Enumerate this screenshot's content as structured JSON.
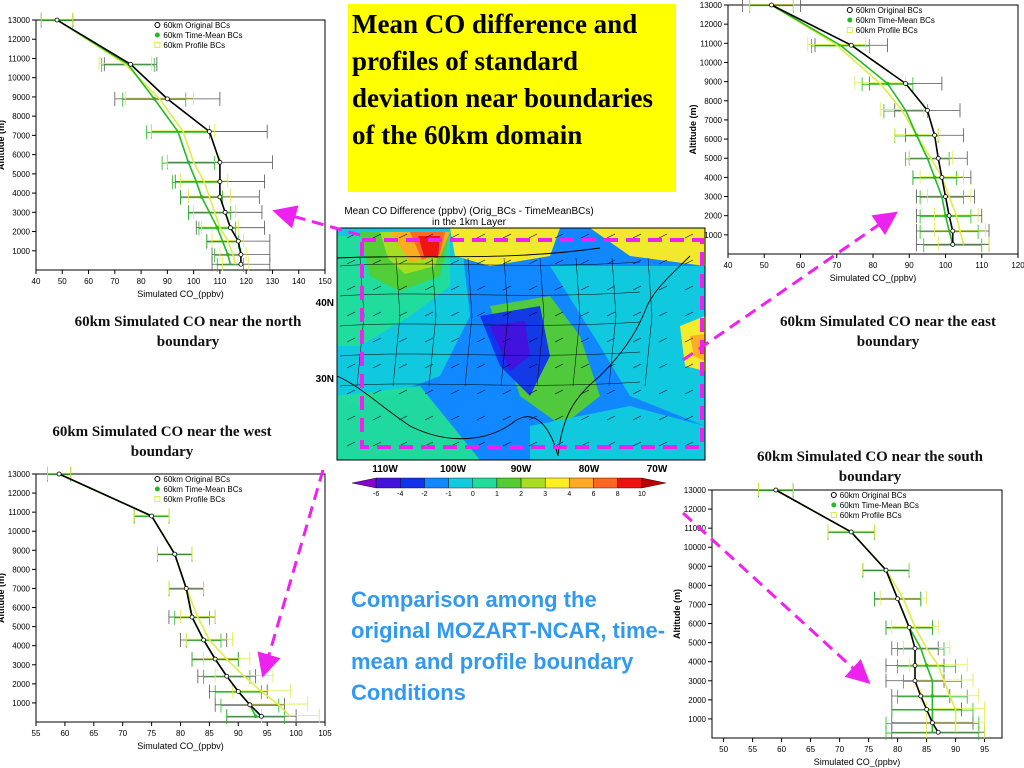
{
  "slide": {
    "title": "Mean CO difference and profiles of standard deviation near boundaries of the 60km domain",
    "comparison_note": "Comparison among the original MOZART-NCAR, time-mean and profile boundary Conditions"
  },
  "colors": {
    "title_bg": "#ffff00",
    "note_text": "#3399ee",
    "arrow": "#ee22ee",
    "original": "#000000",
    "time_mean": "#22bb22",
    "profile": "#ddee44"
  },
  "map": {
    "title_line1": "Mean CO Difference (ppbv) (Orig_BCs - TimeMeanBCs)",
    "title_line2": "in the 1km Layer",
    "lat_labels": [
      "40N",
      "30N"
    ],
    "lon_labels": [
      "110W",
      "100W",
      "90W",
      "80W",
      "70W"
    ],
    "colorbar": {
      "labels": [
        "-6",
        "-4",
        "-2",
        "-1",
        "0",
        "1",
        "2",
        "3",
        "4",
        "6",
        "8",
        "10"
      ],
      "colors": [
        "#8800cc",
        "#4411dd",
        "#1133ee",
        "#1188ff",
        "#11ccdd",
        "#22dd99",
        "#55cc33",
        "#aadd22",
        "#ffee22",
        "#ffaa22",
        "#ff6622",
        "#ee1111",
        "#bb0000"
      ]
    }
  },
  "chart_data": [
    {
      "type": "line",
      "caption": "60km Simulated CO near the north boundary",
      "xlabel": "Simulated CO_(ppbv)",
      "ylabel": "Altitude (m)",
      "xlim": [
        40,
        150
      ],
      "ylim": [
        0,
        13000
      ],
      "xticks": [
        40,
        50,
        60,
        70,
        80,
        90,
        100,
        110,
        120,
        130,
        140,
        150
      ],
      "yticks": [
        1000,
        2000,
        3000,
        4000,
        5000,
        6000,
        7000,
        8000,
        9000,
        10000,
        11000,
        12000,
        13000
      ],
      "legend": [
        "60km Original BCs",
        "60km Time-Mean BCs",
        "60km Profile BCs"
      ],
      "altitude": [
        13000,
        10700,
        8900,
        7200,
        5600,
        4600,
        3800,
        3000,
        2200,
        1500,
        800,
        300
      ],
      "series": [
        {
          "name": "60km Original BCs",
          "values": [
            48,
            76,
            90,
            106,
            110,
            110,
            110,
            112,
            114,
            117,
            118,
            118
          ],
          "spread": [
            6,
            10,
            20,
            22,
            20,
            17,
            15,
            14,
            13,
            12,
            11,
            11
          ]
        },
        {
          "name": "60km Time-Mean BCs",
          "values": [
            48,
            75,
            85,
            94,
            98,
            101,
            103,
            106,
            109,
            111,
            113,
            114
          ],
          "spread": [
            6,
            10,
            12,
            12,
            10,
            9,
            8,
            8,
            7,
            6,
            5,
            5
          ]
        },
        {
          "name": "60km Profile BCs",
          "values": [
            48,
            74,
            87,
            96,
            100,
            104,
            106,
            108,
            110,
            113,
            115,
            116
          ],
          "spread": [
            6,
            10,
            13,
            12,
            10,
            9,
            8,
            8,
            7,
            6,
            5,
            5
          ]
        }
      ]
    },
    {
      "type": "line",
      "caption": "60km Simulated CO near the east boundary",
      "xlabel": "Simulated CO_(ppbv)",
      "ylabel": "Altitude (m)",
      "xlim": [
        40,
        120
      ],
      "ylim": [
        0,
        13000
      ],
      "xticks": [
        40,
        50,
        60,
        70,
        80,
        90,
        100,
        110,
        120
      ],
      "yticks": [
        1000,
        2000,
        3000,
        4000,
        5000,
        6000,
        7000,
        8000,
        9000,
        10000,
        11000,
        12000,
        13000
      ],
      "legend": [
        "60km Original BCs",
        "60km Time-Mean BCs",
        "60km Profile BCs"
      ],
      "altitude": [
        13000,
        10900,
        8900,
        7500,
        6200,
        5000,
        4000,
        3000,
        2000,
        1200,
        500
      ],
      "series": [
        {
          "name": "60km Original BCs",
          "values": [
            52,
            74,
            89,
            95,
            97,
            98,
            99,
            100,
            101,
            102,
            102
          ],
          "spread": [
            8,
            10,
            10,
            9,
            8,
            8,
            8,
            8,
            9,
            10,
            10
          ]
        },
        {
          "name": "60km Time-Mean BCs",
          "values": [
            52,
            71,
            84,
            89,
            92,
            95,
            97,
            99,
            100,
            101,
            102
          ],
          "spread": [
            6,
            8,
            7,
            6,
            6,
            6,
            6,
            6,
            7,
            8,
            8
          ]
        },
        {
          "name": "60km Profile BCs",
          "values": [
            52,
            70,
            82,
            88,
            92,
            96,
            99,
            101,
            103,
            104,
            105
          ],
          "spread": [
            6,
            8,
            7,
            6,
            6,
            6,
            6,
            6,
            6,
            7,
            7
          ]
        }
      ]
    },
    {
      "type": "line",
      "caption": "60km Simulated CO near the west boundary",
      "xlabel": "Simulated CO_(ppbv)",
      "ylabel": "Altitude (m)",
      "xlim": [
        55,
        105
      ],
      "ylim": [
        0,
        13000
      ],
      "xticks": [
        55,
        60,
        65,
        70,
        75,
        80,
        85,
        90,
        95,
        100,
        105
      ],
      "yticks": [
        1000,
        2000,
        3000,
        4000,
        5000,
        6000,
        7000,
        8000,
        9000,
        10000,
        11000,
        12000,
        13000
      ],
      "legend": [
        "60km Original BCs",
        "60km Time-Mean BCs",
        "60km Profile BCs"
      ],
      "altitude": [
        13000,
        10800,
        8800,
        7000,
        5500,
        4300,
        3300,
        2400,
        1600,
        900,
        300
      ],
      "series": [
        {
          "name": "60km Original BCs",
          "values": [
            59,
            75,
            79,
            81,
            82,
            84,
            86,
            88,
            90,
            92,
            94
          ],
          "spread": [
            2,
            3,
            3,
            3,
            4,
            4,
            4,
            5,
            5,
            6,
            6
          ]
        },
        {
          "name": "60km Time-Mean BCs",
          "values": [
            59,
            75,
            79,
            81,
            82,
            84,
            86,
            88,
            90,
            92,
            93
          ],
          "spread": [
            2,
            3,
            3,
            3,
            3,
            3,
            4,
            4,
            4,
            5,
            5
          ]
        },
        {
          "name": "60km Profile BCs",
          "values": [
            59,
            75,
            79,
            81,
            83,
            85,
            88,
            91,
            94,
            97,
            99
          ],
          "spread": [
            2,
            3,
            3,
            3,
            3,
            4,
            4,
            5,
            5,
            5,
            5
          ]
        }
      ]
    },
    {
      "type": "line",
      "caption": "60km Simulated CO near the south boundary",
      "xlabel": "Simulated CO_(ppbv)",
      "ylabel": "Altitude (m)",
      "xlim": [
        48,
        98
      ],
      "ylim": [
        0,
        13000
      ],
      "xticks": [
        50,
        55,
        60,
        65,
        70,
        75,
        80,
        85,
        90,
        95
      ],
      "yticks": [
        1000,
        2000,
        3000,
        4000,
        5000,
        6000,
        7000,
        8000,
        9000,
        10000,
        11000,
        12000,
        13000
      ],
      "legend": [
        "60km Original BCs",
        "60km Time-Mean BCs",
        "60km Profile BCs"
      ],
      "altitude": [
        13000,
        10800,
        8800,
        7300,
        5800,
        4700,
        3800,
        3000,
        2200,
        1500,
        800,
        300
      ],
      "series": [
        {
          "name": "60km Original BCs",
          "values": [
            59,
            72,
            78,
            80,
            82,
            83,
            83,
            83,
            84,
            85,
            86,
            87
          ],
          "spread": [
            3,
            4,
            4,
            4,
            4,
            4,
            5,
            5,
            5,
            6,
            7,
            8
          ]
        },
        {
          "name": "60km Time-Mean BCs",
          "values": [
            59,
            72,
            78,
            80,
            82,
            84,
            85,
            86,
            86,
            86,
            86,
            86
          ],
          "spread": [
            3,
            4,
            4,
            4,
            4,
            4,
            5,
            5,
            6,
            7,
            8,
            8
          ]
        },
        {
          "name": "60km Profile BCs",
          "values": [
            59,
            72,
            78,
            81,
            83,
            85,
            87,
            88,
            89,
            90,
            90,
            90
          ],
          "spread": [
            3,
            4,
            4,
            4,
            4,
            4,
            5,
            5,
            5,
            5,
            5,
            5
          ]
        }
      ]
    }
  ]
}
